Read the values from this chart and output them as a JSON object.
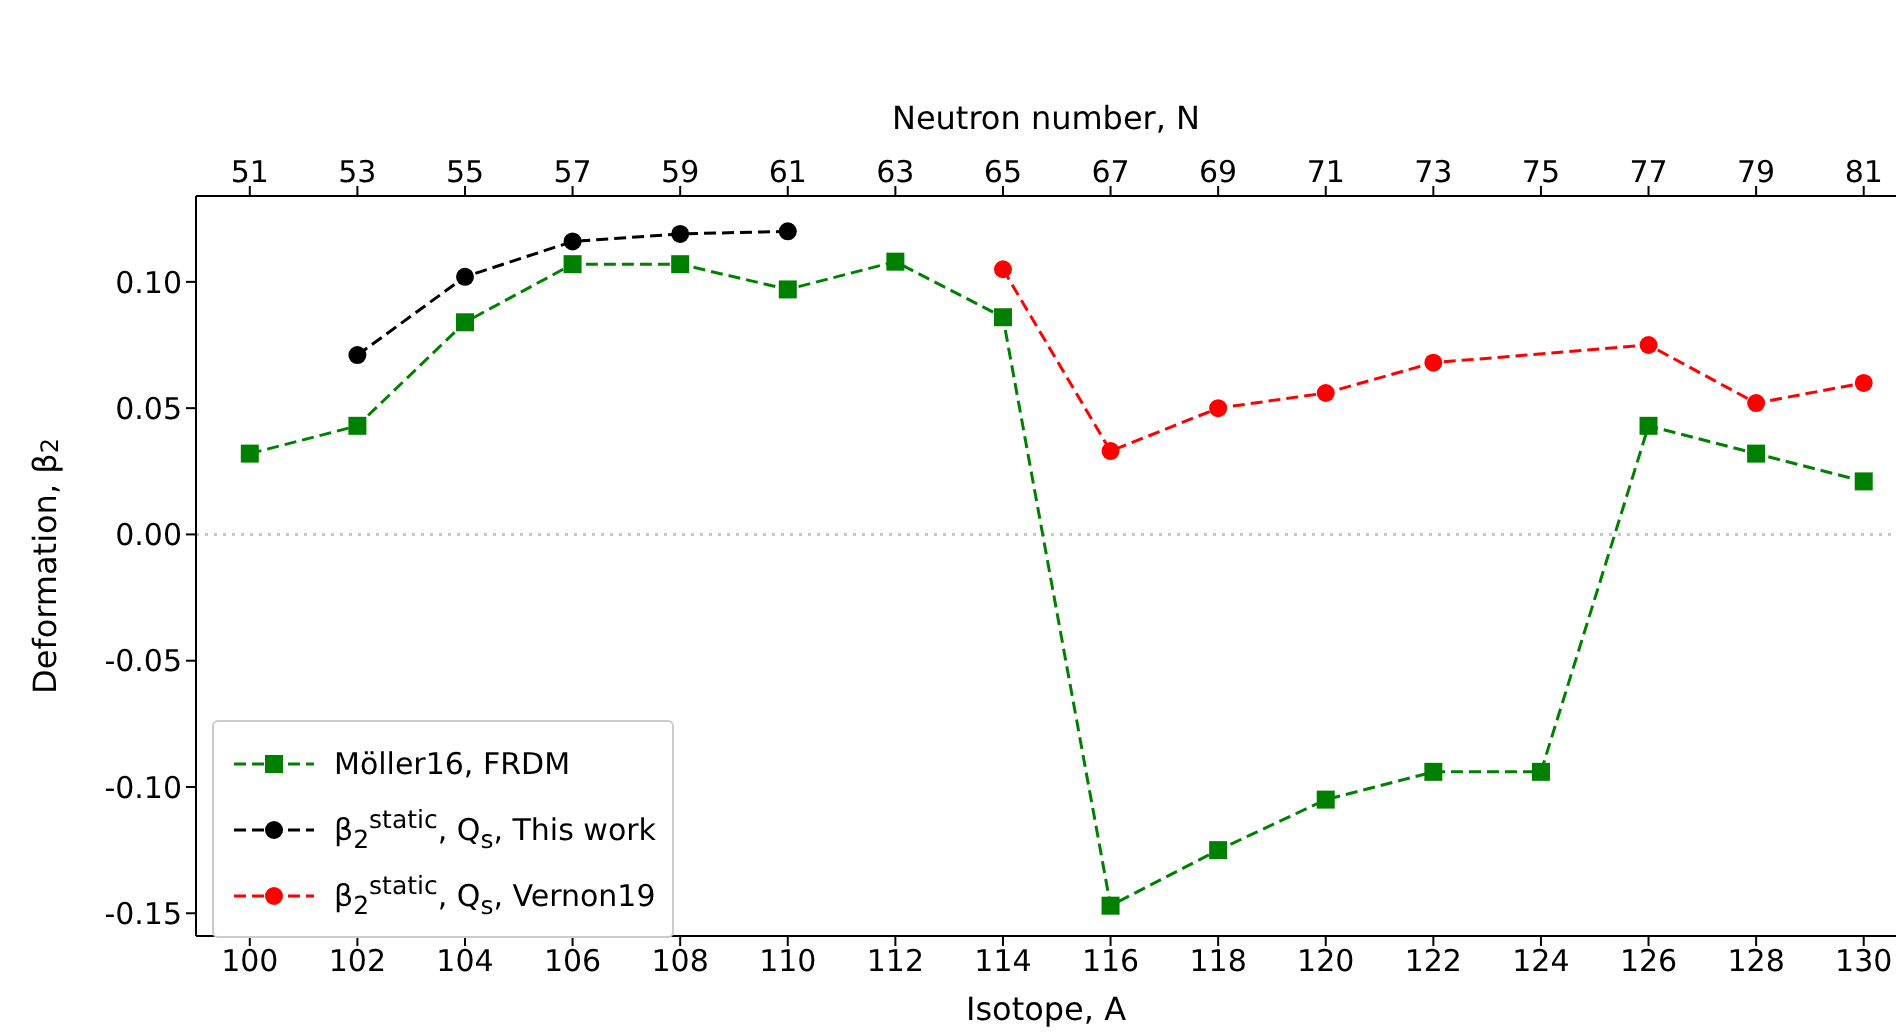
{
  "chart_data": {
    "type": "line",
    "xlabel": "Isotope, A",
    "x2label": "Neutron number, N",
    "ylabel": "Deformation, β$_{2}$",
    "xlim": [
      99,
      130.6
    ],
    "xticks": [
      100,
      102,
      104,
      106,
      108,
      110,
      112,
      114,
      116,
      118,
      120,
      122,
      124,
      126,
      128,
      130
    ],
    "x2lim": [
      50,
      81.6
    ],
    "x2ticks": [
      51,
      53,
      55,
      57,
      59,
      61,
      63,
      65,
      67,
      69,
      71,
      73,
      75,
      77,
      79,
      81
    ],
    "ylim": [
      -0.159,
      0.134
    ],
    "yticks": [
      -0.15,
      {
        "value": -0.1,
        "label": "-0.10"
      },
      -0.05,
      {
        "value": 0,
        "label": "0.00"
      },
      0.05,
      {
        "value": 0.1,
        "label": "0.10"
      }
    ],
    "ref_lines": [
      {
        "axis": "y",
        "value": 0,
        "color": "#c8c8c8",
        "line_style": "dotted"
      }
    ],
    "legend": "bottom left",
    "grid": false,
    "line_style": "dashed",
    "series": [
      {
        "name": "Möller16, FRDM",
        "color": "#008000",
        "marker": "square",
        "x": [
          100,
          102,
          104,
          106,
          108,
          110,
          112,
          114,
          116,
          118,
          120,
          122,
          124,
          126,
          128,
          130
        ],
        "values": [
          0.032,
          0.043,
          0.084,
          0.107,
          0.107,
          0.097,
          0.108,
          0.086,
          -0.147,
          -0.125,
          -0.105,
          -0.094,
          -0.094,
          0.043,
          0.032,
          0.021
        ]
      },
      {
        "name": "β$_{2}$$^{static}$, Q$_{s}$, This work",
        "color": "#000000",
        "marker": "circle",
        "x": [
          102,
          104,
          106,
          108,
          110
        ],
        "values": [
          0.071,
          0.102,
          0.116,
          0.119,
          0.12
        ]
      },
      {
        "name": "β$_{2}$$^{static}$, Q$_{s}$, Vernon19",
        "color": "#ff0000",
        "marker": "circle",
        "x": [
          114,
          116,
          118,
          120,
          122,
          126,
          128,
          130
        ],
        "values": [
          0.105,
          0.033,
          0.05,
          0.056,
          0.068,
          0.075,
          0.052,
          0.06
        ]
      }
    ]
  }
}
